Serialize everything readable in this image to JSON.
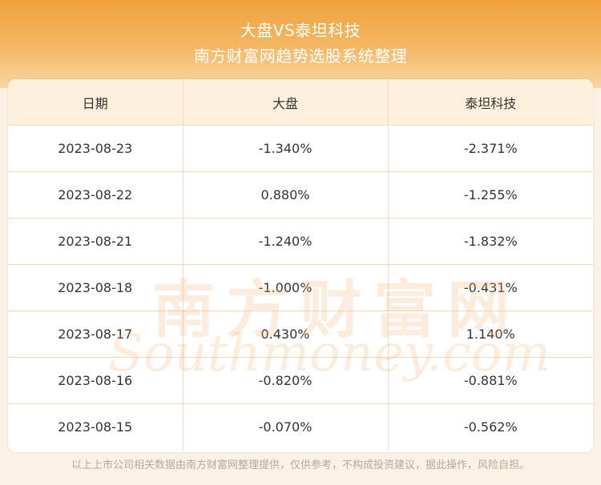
{
  "header": {
    "title": "大盘VS泰坦科技",
    "subtitle": "南方财富网趋势选股系统整理"
  },
  "table": {
    "columns": [
      "日期",
      "大盘",
      "泰坦科技"
    ],
    "rows": [
      [
        "2023-08-23",
        "-1.340%",
        "-2.371%"
      ],
      [
        "2023-08-22",
        "0.880%",
        "-1.255%"
      ],
      [
        "2023-08-21",
        "-1.240%",
        "-1.832%"
      ],
      [
        "2023-08-18",
        "-1.000%",
        "-0.431%"
      ],
      [
        "2023-08-17",
        "0.430%",
        "1.140%"
      ],
      [
        "2023-08-16",
        "-0.820%",
        "-0.881%"
      ],
      [
        "2023-08-15",
        "-0.070%",
        "-0.562%"
      ]
    ]
  },
  "watermark": {
    "cn": "南方财富网",
    "en": "Southmoney.com"
  },
  "footer": {
    "disclaimer": "以上上市公司相关数据由南方财富网整理提供，仅供参考，不构成投资建议，据此操作，风险自担。"
  },
  "colors": {
    "header_orange": "#f0a13a",
    "table_header_bg": "#fdf0dd",
    "grid_line": "#f0d9bd"
  }
}
